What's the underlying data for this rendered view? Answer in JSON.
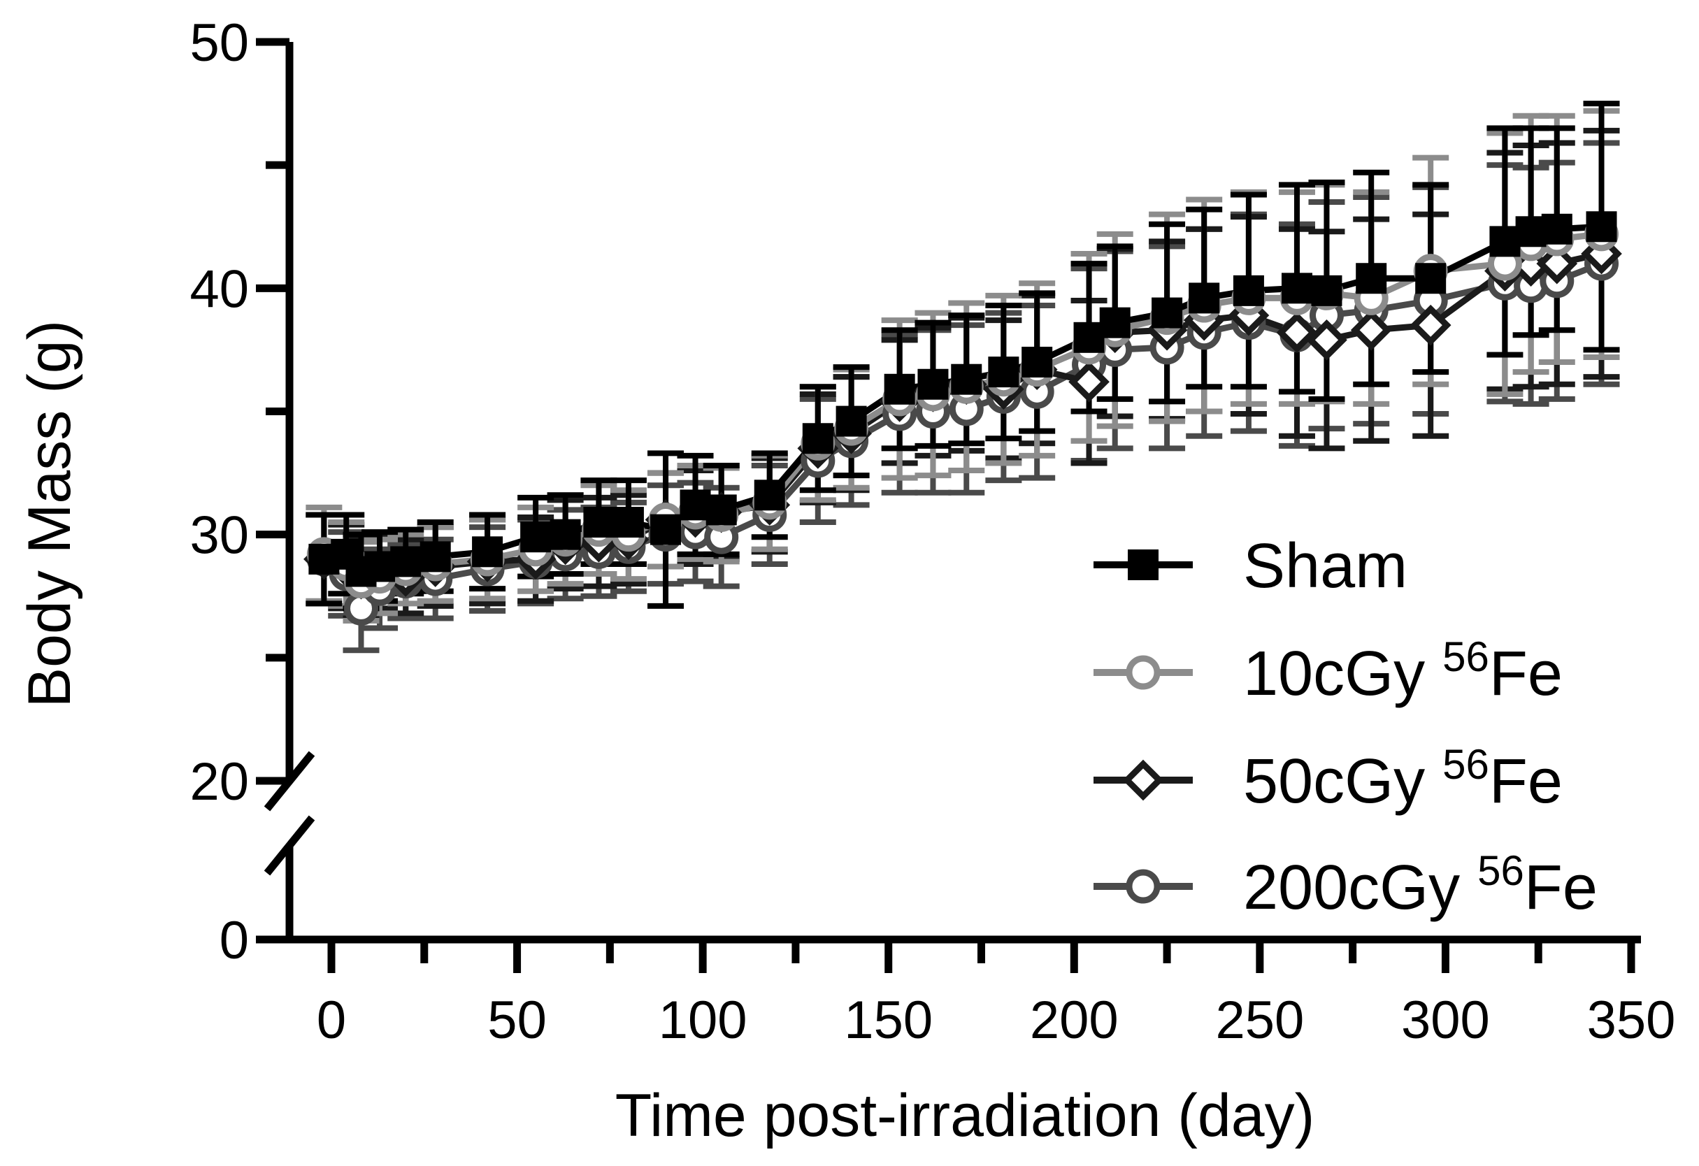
{
  "chart_data": {
    "type": "line",
    "xlabel": "Time post-irradiation (day)",
    "ylabel": "Body Mass (g)",
    "xlim": [
      -10,
      350
    ],
    "ylim_upper": [
      20,
      50
    ],
    "ylim_lower": [
      0,
      5
    ],
    "y_axis_break": [
      5,
      20
    ],
    "x_ticks": [
      "0",
      "50",
      "100",
      "150",
      "200",
      "250",
      "300",
      "350"
    ],
    "y_ticks": [
      "0",
      "20",
      "30",
      "40",
      "50"
    ],
    "legend": {
      "position": "bottom-right",
      "isotope": "Fe",
      "mass_number": "56"
    },
    "x": [
      -2,
      4,
      8,
      13,
      20,
      28,
      42,
      55,
      63,
      72,
      80,
      90,
      98,
      105,
      118,
      131,
      140,
      153,
      162,
      171,
      181,
      190,
      204,
      211,
      225,
      235,
      247,
      260,
      268,
      280,
      296,
      316,
      323,
      330,
      342
    ],
    "series": [
      {
        "name": "Sham",
        "label": "Sham",
        "marker": "square",
        "color": "#000000",
        "values": [
          29.0,
          29.2,
          28.5,
          28.7,
          28.9,
          29.1,
          29.3,
          29.9,
          30.0,
          30.5,
          30.5,
          30.2,
          31.2,
          31.0,
          31.6,
          33.9,
          34.6,
          35.9,
          36.1,
          36.3,
          36.6,
          37.0,
          38.0,
          38.6,
          39.0,
          39.6,
          39.9,
          40.0,
          39.9,
          40.4,
          40.4,
          41.9,
          42.3,
          42.4,
          42.5
        ],
        "errors": [
          1.8,
          1.6,
          1.5,
          1.4,
          1.3,
          1.4,
          1.5,
          1.6,
          1.6,
          1.7,
          1.7,
          3.1,
          2.0,
          1.8,
          1.7,
          2.1,
          2.2,
          2.4,
          2.5,
          2.6,
          2.7,
          2.8,
          3.0,
          3.1,
          3.6,
          3.6,
          3.9,
          4.2,
          4.4,
          4.3,
          3.8,
          4.6,
          4.2,
          4.1,
          5.0
        ]
      },
      {
        "name": "10cGy 56Fe",
        "label": "10cGy",
        "marker": "circle-open",
        "color": "#8c8c8c",
        "values": [
          29.2,
          28.8,
          28.1,
          28.3,
          28.6,
          28.8,
          29.0,
          29.4,
          29.8,
          30.2,
          30.0,
          30.6,
          30.9,
          30.8,
          31.3,
          33.7,
          34.3,
          35.5,
          35.7,
          36.0,
          36.3,
          36.7,
          37.6,
          38.3,
          38.8,
          39.3,
          39.6,
          39.6,
          39.8,
          39.6,
          40.7,
          41.0,
          41.8,
          42.0,
          42.2
        ],
        "errors": [
          1.9,
          1.7,
          1.6,
          1.5,
          1.4,
          1.5,
          1.6,
          1.7,
          1.8,
          1.8,
          1.8,
          1.9,
          1.9,
          1.9,
          1.9,
          2.3,
          2.4,
          3.2,
          3.3,
          3.4,
          3.4,
          3.5,
          3.8,
          3.9,
          4.2,
          4.3,
          4.3,
          4.3,
          4.4,
          4.3,
          4.6,
          5.3,
          5.2,
          5.0,
          5.0
        ]
      },
      {
        "name": "50cGy 56Fe",
        "label": "50cGy",
        "marker": "diamond-open",
        "color": "#1a1a1a",
        "values": [
          29.0,
          28.7,
          28.2,
          28.5,
          28.3,
          28.7,
          28.9,
          29.0,
          29.6,
          29.7,
          29.8,
          30.6,
          30.7,
          30.9,
          31.2,
          33.5,
          34.1,
          35.4,
          35.8,
          36.1,
          35.9,
          36.7,
          36.2,
          38.2,
          38.3,
          38.7,
          38.9,
          38.2,
          37.9,
          38.3,
          38.5,
          40.7,
          40.9,
          41.0,
          41.4
        ],
        "errors": [
          1.8,
          1.7,
          1.6,
          1.5,
          1.5,
          1.6,
          1.7,
          1.7,
          1.8,
          1.8,
          1.8,
          1.9,
          1.9,
          1.9,
          1.9,
          2.2,
          2.3,
          2.5,
          2.6,
          2.7,
          2.8,
          3.0,
          3.3,
          3.4,
          3.6,
          3.7,
          4.0,
          4.2,
          4.4,
          4.5,
          4.5,
          4.8,
          4.9,
          4.9,
          5.0
        ]
      },
      {
        "name": "200cGy 56Fe",
        "label": "200cGy",
        "marker": "circle-open",
        "color": "#4a4a4a",
        "values": [
          29.0,
          28.4,
          27.0,
          27.8,
          28.1,
          28.2,
          28.6,
          28.9,
          29.2,
          29.3,
          29.5,
          30.0,
          30.1,
          29.9,
          30.8,
          33.0,
          33.8,
          34.9,
          35.0,
          35.1,
          35.6,
          35.8,
          36.9,
          37.5,
          37.6,
          38.2,
          38.6,
          38.1,
          38.9,
          39.1,
          39.5,
          40.2,
          40.1,
          40.3,
          41.0
        ],
        "errors": [
          1.8,
          1.7,
          1.7,
          1.6,
          1.5,
          1.6,
          1.7,
          1.7,
          1.8,
          1.8,
          1.8,
          2.0,
          2.0,
          2.0,
          2.0,
          2.5,
          2.6,
          3.2,
          3.3,
          3.4,
          3.4,
          3.5,
          3.9,
          4.0,
          4.1,
          4.2,
          4.4,
          4.5,
          4.6,
          4.6,
          4.6,
          4.8,
          4.8,
          4.8,
          4.9
        ]
      }
    ]
  }
}
